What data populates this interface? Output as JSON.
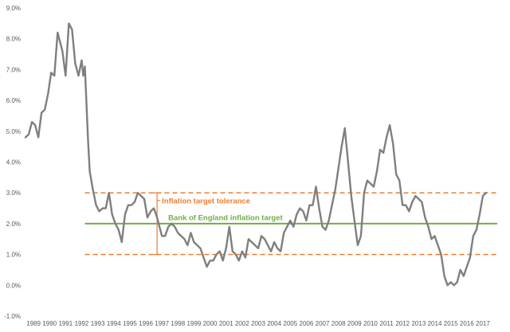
{
  "chart_data": {
    "type": "line",
    "title": "",
    "xlabel": "",
    "ylabel": "",
    "ylim": [
      -1.0,
      9.0
    ],
    "y_ticks": [
      -1.0,
      0.0,
      1.0,
      2.0,
      3.0,
      4.0,
      5.0,
      6.0,
      7.0,
      8.0,
      9.0
    ],
    "y_tick_labels": [
      "-1.0%",
      "0.0%",
      "1.0%",
      "2.0%",
      "3.0%",
      "4.0%",
      "5.0%",
      "6.0%",
      "7.0%",
      "8.0%",
      "9.0%"
    ],
    "xlim": [
      1989.0,
      2018.0
    ],
    "x_tick_labels": [
      "1989",
      "1990",
      "1991",
      "1992",
      "1993",
      "1994",
      "1995",
      "1996",
      "1997",
      "1998",
      "1999",
      "2000",
      "2001",
      "2002",
      "2003",
      "2004",
      "2005",
      "2006",
      "2007",
      "2008",
      "2009",
      "2010",
      "2011",
      "2012",
      "2013",
      "2014",
      "2015",
      "2016",
      "2017"
    ],
    "grid": false,
    "legend": "none",
    "series": [
      {
        "color": "#7f7f7f",
        "x": [
          1989.0,
          1989.2,
          1989.4,
          1989.6,
          1989.8,
          1990.0,
          1990.2,
          1990.4,
          1990.6,
          1990.8,
          1991.0,
          1991.1,
          1991.3,
          1991.5,
          1991.7,
          1991.9,
          1992.1,
          1992.3,
          1992.5,
          1992.6,
          1992.7,
          1992.9,
          1993.0,
          1993.2,
          1993.4,
          1993.6,
          1993.8,
          1994.0,
          1994.2,
          1994.4,
          1994.6,
          1994.8,
          1995.0,
          1995.2,
          1995.4,
          1995.6,
          1995.8,
          1996.0,
          1996.2,
          1996.4,
          1996.6,
          1996.8,
          1997.0,
          1997.2,
          1997.5,
          1997.7,
          1997.9,
          1998.1,
          1998.3,
          1998.5,
          1998.7,
          1998.9,
          1999.1,
          1999.3,
          1999.5,
          1999.7,
          1999.9,
          2000.1,
          2000.3,
          2000.5,
          2000.7,
          2000.9,
          2001.1,
          2001.3,
          2001.5,
          2001.7,
          2001.9,
          2002.1,
          2002.3,
          2002.5,
          2002.7,
          2002.9,
          2003.1,
          2003.3,
          2003.5,
          2003.7,
          2003.9,
          2004.1,
          2004.3,
          2004.5,
          2004.7,
          2004.9,
          2005.1,
          2005.3,
          2005.5,
          2005.7,
          2005.9,
          2006.1,
          2006.3,
          2006.5,
          2006.7,
          2006.9,
          2007.1,
          2007.3,
          2007.5,
          2007.7,
          2007.9,
          2008.1,
          2008.3,
          2008.5,
          2008.7,
          2008.9,
          2009.1,
          2009.3,
          2009.5,
          2009.7,
          2009.9,
          2010.1,
          2010.3,
          2010.5,
          2010.7,
          2010.9,
          2011.1,
          2011.3,
          2011.5,
          2011.7,
          2011.9,
          2012.1,
          2012.3,
          2012.5,
          2012.7,
          2012.9,
          2013.1,
          2013.3,
          2013.5,
          2013.7,
          2013.9,
          2014.1,
          2014.3,
          2014.5,
          2014.7,
          2014.9,
          2015.1,
          2015.3,
          2015.5,
          2015.7,
          2015.9,
          2016.1,
          2016.3,
          2016.5,
          2016.7,
          2016.9,
          2017.1,
          2017.3,
          2017.5,
          2017.7
        ],
        "values": [
          4.8,
          4.9,
          5.3,
          5.2,
          4.8,
          5.6,
          5.7,
          6.2,
          6.9,
          6.8,
          8.2,
          8.0,
          7.6,
          6.8,
          8.5,
          8.3,
          7.2,
          6.8,
          7.3,
          6.8,
          7.1,
          4.7,
          3.7,
          3.1,
          2.6,
          2.4,
          2.5,
          2.5,
          3.0,
          2.3,
          2.0,
          1.8,
          1.4,
          2.3,
          2.6,
          2.6,
          2.7,
          3.0,
          2.9,
          2.8,
          2.2,
          2.4,
          2.5,
          2.2,
          1.6,
          1.6,
          1.9,
          2.0,
          1.9,
          1.7,
          1.6,
          1.5,
          1.3,
          1.7,
          1.4,
          1.3,
          1.2,
          0.9,
          0.6,
          0.8,
          0.8,
          1.0,
          1.1,
          0.8,
          1.2,
          1.9,
          1.1,
          1.0,
          0.8,
          1.1,
          0.9,
          1.5,
          1.4,
          1.3,
          1.2,
          1.6,
          1.5,
          1.3,
          1.1,
          1.4,
          1.2,
          1.1,
          1.7,
          1.9,
          2.1,
          1.9,
          2.3,
          2.5,
          2.4,
          2.1,
          2.6,
          2.6,
          3.2,
          2.5,
          1.9,
          1.8,
          2.1,
          2.6,
          3.1,
          3.8,
          4.5,
          5.1,
          4.0,
          2.9,
          2.1,
          1.3,
          1.6,
          3.0,
          3.4,
          3.3,
          3.2,
          3.7,
          4.4,
          4.3,
          4.8,
          5.2,
          4.6,
          3.6,
          3.4,
          2.6,
          2.6,
          2.4,
          2.7,
          2.9,
          2.8,
          2.7,
          2.2,
          1.9,
          1.5,
          1.6,
          1.3,
          1.0,
          0.3,
          0.0,
          0.1,
          0.0,
          0.1,
          0.5,
          0.3,
          0.6,
          0.9,
          1.6,
          1.8,
          2.3,
          2.9,
          3.0
        ]
      }
    ],
    "reference_lines": [
      {
        "id": "upper",
        "y": 3.0,
        "color": "#ed7d31",
        "style": "dashed"
      },
      {
        "id": "target",
        "y": 2.0,
        "color": "#70ad47",
        "style": "solid"
      },
      {
        "id": "lower",
        "y": 1.0,
        "color": "#ed7d31",
        "style": "dashed"
      }
    ],
    "reference_start_x": 1992.7,
    "tolerance_bracket_x": 1997.2,
    "annotations": [
      {
        "id": "tolerance",
        "text": "Inflation target tolerance",
        "color": "#ed7d31",
        "y": 2.75
      },
      {
        "id": "target",
        "text": "Bank of England inflation target",
        "color": "#70ad47",
        "y": 2.2
      }
    ]
  }
}
